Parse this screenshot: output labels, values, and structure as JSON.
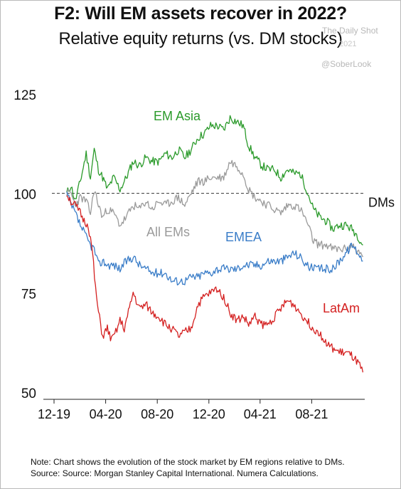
{
  "header": {
    "title": "F2: Will EM assets recover in 2022?",
    "subtitle": "Relative equity returns (vs. DM stocks)"
  },
  "watermark": {
    "line1": "The Daily Shot",
    "line2": "2021",
    "handle": "@SoberLook"
  },
  "footer": {
    "note": "Note: Chart shows the evolution of the stock market by EM regions relative to DMs.",
    "source": "Source: Source: Morgan Stanley Capital International. Numera Calculations."
  },
  "chart_data": {
    "type": "line",
    "title": "F2: Will EM assets recover in 2022?",
    "subtitle": "Relative equity returns (vs. DM stocks)",
    "xlabel": "",
    "ylabel": "",
    "x_ticks": [
      "12-19",
      "04-20",
      "08-20",
      "12-20",
      "04-21",
      "08-21"
    ],
    "y_ticks": [
      50,
      75,
      100,
      125
    ],
    "ylim": [
      50,
      125
    ],
    "grid": false,
    "legend": "inline labels",
    "reference_line": {
      "label": "DMs",
      "value": 100,
      "style": "dashed"
    },
    "series": [
      {
        "name": "EM Asia",
        "color": "#2a9a2a",
        "points": [
          [
            "2019-12-31",
            100
          ],
          [
            "2020-01-10",
            102
          ],
          [
            "2020-01-20",
            98
          ],
          [
            "2020-02-01",
            103
          ],
          [
            "2020-02-15",
            110
          ],
          [
            "2020-02-25",
            104
          ],
          [
            "2020-03-05",
            111
          ],
          [
            "2020-03-15",
            106
          ],
          [
            "2020-03-25",
            104
          ],
          [
            "2020-04-05",
            101
          ],
          [
            "2020-04-20",
            104
          ],
          [
            "2020-05-05",
            101
          ],
          [
            "2020-05-20",
            104
          ],
          [
            "2020-06-05",
            108
          ],
          [
            "2020-06-20",
            107
          ],
          [
            "2020-07-05",
            109
          ],
          [
            "2020-07-20",
            108
          ],
          [
            "2020-08-05",
            108
          ],
          [
            "2020-08-20",
            110
          ],
          [
            "2020-09-05",
            109
          ],
          [
            "2020-09-20",
            111
          ],
          [
            "2020-10-05",
            109
          ],
          [
            "2020-10-20",
            111
          ],
          [
            "2020-11-05",
            114
          ],
          [
            "2020-11-20",
            115
          ],
          [
            "2020-12-05",
            117
          ],
          [
            "2020-12-20",
            117
          ],
          [
            "2021-01-05",
            116
          ],
          [
            "2021-01-20",
            119
          ],
          [
            "2021-02-05",
            118
          ],
          [
            "2021-02-20",
            117
          ],
          [
            "2021-03-05",
            112
          ],
          [
            "2021-03-20",
            109
          ],
          [
            "2021-04-05",
            107
          ],
          [
            "2021-04-20",
            106
          ],
          [
            "2021-05-05",
            106
          ],
          [
            "2021-05-20",
            104
          ],
          [
            "2021-06-05",
            106
          ],
          [
            "2021-06-20",
            105
          ],
          [
            "2021-07-05",
            105
          ],
          [
            "2021-07-20",
            101
          ],
          [
            "2021-08-05",
            96
          ],
          [
            "2021-08-20",
            94
          ],
          [
            "2021-09-05",
            93
          ],
          [
            "2021-09-20",
            91
          ],
          [
            "2021-10-05",
            92
          ],
          [
            "2021-10-20",
            92
          ],
          [
            "2021-11-05",
            91
          ],
          [
            "2021-11-20",
            89
          ],
          [
            "2021-11-30",
            87
          ]
        ]
      },
      {
        "name": "All EMs",
        "color": "#9a9a9a",
        "points": [
          [
            "2019-12-31",
            100
          ],
          [
            "2020-01-10",
            100
          ],
          [
            "2020-01-20",
            97
          ],
          [
            "2020-02-01",
            99
          ],
          [
            "2020-02-15",
            98
          ],
          [
            "2020-02-25",
            95
          ],
          [
            "2020-03-05",
            101
          ],
          [
            "2020-03-15",
            97
          ],
          [
            "2020-03-25",
            94
          ],
          [
            "2020-04-05",
            96
          ],
          [
            "2020-04-20",
            95
          ],
          [
            "2020-05-05",
            92
          ],
          [
            "2020-05-20",
            94
          ],
          [
            "2020-06-05",
            97
          ],
          [
            "2020-06-20",
            96
          ],
          [
            "2020-07-05",
            98
          ],
          [
            "2020-07-20",
            96
          ],
          [
            "2020-08-05",
            98
          ],
          [
            "2020-08-20",
            97
          ],
          [
            "2020-09-05",
            98
          ],
          [
            "2020-09-20",
            99
          ],
          [
            "2020-10-05",
            97
          ],
          [
            "2020-10-20",
            100
          ],
          [
            "2020-11-05",
            103
          ],
          [
            "2020-11-20",
            103
          ],
          [
            "2020-12-05",
            104
          ],
          [
            "2020-12-20",
            104
          ],
          [
            "2021-01-05",
            104
          ],
          [
            "2021-01-20",
            108
          ],
          [
            "2021-02-05",
            107
          ],
          [
            "2021-02-20",
            105
          ],
          [
            "2021-03-05",
            101
          ],
          [
            "2021-03-20",
            99
          ],
          [
            "2021-04-05",
            98
          ],
          [
            "2021-04-20",
            97
          ],
          [
            "2021-05-05",
            96
          ],
          [
            "2021-05-20",
            95
          ],
          [
            "2021-06-05",
            97
          ],
          [
            "2021-06-20",
            97
          ],
          [
            "2021-07-05",
            96
          ],
          [
            "2021-07-20",
            93
          ],
          [
            "2021-08-05",
            88
          ],
          [
            "2021-08-20",
            87
          ],
          [
            "2021-09-05",
            87
          ],
          [
            "2021-09-20",
            86
          ],
          [
            "2021-10-05",
            86
          ],
          [
            "2021-10-20",
            86
          ],
          [
            "2021-11-05",
            87
          ],
          [
            "2021-11-20",
            85
          ],
          [
            "2021-11-30",
            84
          ]
        ]
      },
      {
        "name": "EMEA",
        "color": "#3a7dc8",
        "points": [
          [
            "2019-12-31",
            100
          ],
          [
            "2020-01-10",
            97
          ],
          [
            "2020-01-20",
            95
          ],
          [
            "2020-02-01",
            92
          ],
          [
            "2020-02-15",
            89
          ],
          [
            "2020-02-25",
            87
          ],
          [
            "2020-03-05",
            86
          ],
          [
            "2020-03-15",
            82
          ],
          [
            "2020-03-25",
            83
          ],
          [
            "2020-04-05",
            82
          ],
          [
            "2020-04-20",
            82
          ],
          [
            "2020-05-05",
            81
          ],
          [
            "2020-05-20",
            83
          ],
          [
            "2020-06-05",
            84
          ],
          [
            "2020-06-20",
            82
          ],
          [
            "2020-07-05",
            81
          ],
          [
            "2020-07-20",
            80
          ],
          [
            "2020-08-05",
            80
          ],
          [
            "2020-08-20",
            80
          ],
          [
            "2020-09-05",
            78
          ],
          [
            "2020-09-20",
            78
          ],
          [
            "2020-10-05",
            78
          ],
          [
            "2020-10-20",
            79
          ],
          [
            "2020-11-05",
            79
          ],
          [
            "2020-11-20",
            80
          ],
          [
            "2020-12-05",
            80
          ],
          [
            "2020-12-20",
            81
          ],
          [
            "2021-01-05",
            81
          ],
          [
            "2021-01-20",
            81
          ],
          [
            "2021-02-05",
            81
          ],
          [
            "2021-02-20",
            82
          ],
          [
            "2021-03-05",
            82
          ],
          [
            "2021-03-20",
            82
          ],
          [
            "2021-04-05",
            82
          ],
          [
            "2021-04-20",
            83
          ],
          [
            "2021-05-05",
            83
          ],
          [
            "2021-05-20",
            83
          ],
          [
            "2021-06-05",
            84
          ],
          [
            "2021-06-20",
            85
          ],
          [
            "2021-07-05",
            84
          ],
          [
            "2021-07-20",
            82
          ],
          [
            "2021-08-05",
            81
          ],
          [
            "2021-08-20",
            81
          ],
          [
            "2021-09-05",
            81
          ],
          [
            "2021-09-20",
            81
          ],
          [
            "2021-10-05",
            83
          ],
          [
            "2021-10-20",
            85
          ],
          [
            "2021-11-05",
            87
          ],
          [
            "2021-11-20",
            85
          ],
          [
            "2021-11-30",
            83
          ]
        ]
      },
      {
        "name": "LatAm",
        "color": "#d42020",
        "points": [
          [
            "2019-12-31",
            100
          ],
          [
            "2020-01-10",
            98
          ],
          [
            "2020-01-20",
            97
          ],
          [
            "2020-02-01",
            95
          ],
          [
            "2020-02-10",
            93
          ],
          [
            "2020-02-20",
            92
          ],
          [
            "2020-03-01",
            85
          ],
          [
            "2020-03-08",
            76
          ],
          [
            "2020-03-15",
            70
          ],
          [
            "2020-03-25",
            64
          ],
          [
            "2020-04-05",
            66
          ],
          [
            "2020-04-15",
            63
          ],
          [
            "2020-04-25",
            65
          ],
          [
            "2020-05-05",
            68
          ],
          [
            "2020-05-15",
            66
          ],
          [
            "2020-05-25",
            70
          ],
          [
            "2020-06-05",
            75
          ],
          [
            "2020-06-20",
            71
          ],
          [
            "2020-07-05",
            72
          ],
          [
            "2020-07-20",
            70
          ],
          [
            "2020-08-05",
            69
          ],
          [
            "2020-08-20",
            67
          ],
          [
            "2020-09-05",
            66
          ],
          [
            "2020-09-20",
            64
          ],
          [
            "2020-10-05",
            65
          ],
          [
            "2020-10-20",
            66
          ],
          [
            "2020-11-05",
            72
          ],
          [
            "2020-11-20",
            74
          ],
          [
            "2020-12-05",
            75
          ],
          [
            "2020-12-20",
            76
          ],
          [
            "2021-01-05",
            74
          ],
          [
            "2021-01-20",
            70
          ],
          [
            "2021-02-05",
            68
          ],
          [
            "2021-02-20",
            69
          ],
          [
            "2021-03-05",
            67
          ],
          [
            "2021-03-20",
            69
          ],
          [
            "2021-04-05",
            67
          ],
          [
            "2021-04-20",
            67
          ],
          [
            "2021-05-05",
            69
          ],
          [
            "2021-05-20",
            71
          ],
          [
            "2021-06-05",
            73
          ],
          [
            "2021-06-20",
            72
          ],
          [
            "2021-07-05",
            70
          ],
          [
            "2021-07-20",
            68
          ],
          [
            "2021-08-05",
            66
          ],
          [
            "2021-08-20",
            65
          ],
          [
            "2021-09-05",
            62
          ],
          [
            "2021-09-20",
            61
          ],
          [
            "2021-10-05",
            60
          ],
          [
            "2021-10-20",
            60
          ],
          [
            "2021-11-05",
            59
          ],
          [
            "2021-11-20",
            57
          ],
          [
            "2021-11-30",
            55
          ]
        ]
      }
    ]
  }
}
